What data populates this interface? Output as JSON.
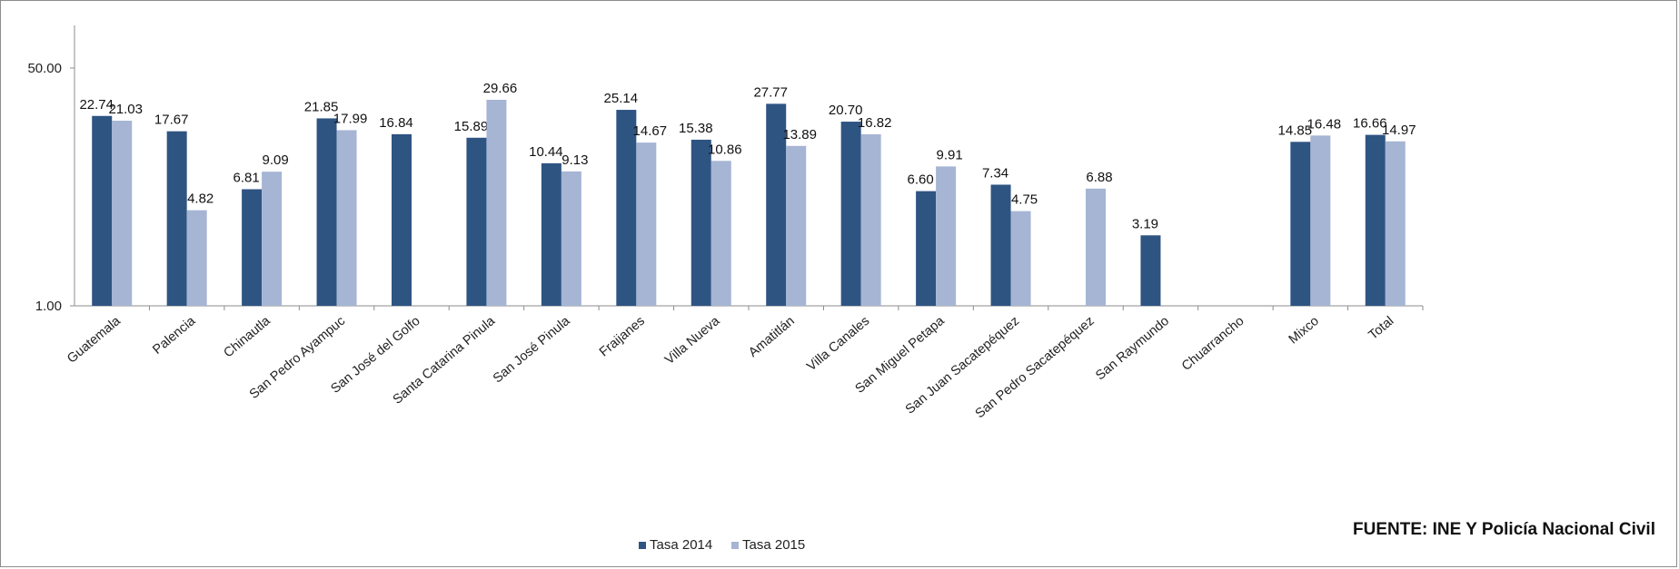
{
  "chart_data": {
    "type": "bar",
    "yscale": "log",
    "ylim": [
      1,
      50
    ],
    "yticks": [
      "50.00",
      "1.00"
    ],
    "grid": false,
    "legend_position": "bottom",
    "categories": [
      "Guatemala",
      "Palencia",
      "Chinautla",
      "San Pedro Ayampuc",
      "San José del Golfo",
      "Santa Catarina Pinula",
      "San José Pinula",
      "Fraijanes",
      "Villa Nueva",
      "Amatitlán",
      "Villa Canales",
      "San Miguel Petapa",
      "San Juan Sacatepéquez",
      "San Pedro Sacatepéquez",
      "San Raymundo",
      "Chuarrancho",
      "Mixco",
      "Total"
    ],
    "series": [
      {
        "name": "Tasa 2014",
        "color": "#2e5482",
        "values": [
          22.74,
          17.67,
          6.81,
          21.85,
          16.84,
          15.89,
          10.44,
          25.14,
          15.38,
          27.77,
          20.7,
          6.6,
          7.34,
          null,
          3.19,
          null,
          14.85,
          16.66
        ],
        "labels": [
          "22.74",
          "17.67",
          "6.81",
          "21.85",
          "16.84",
          "15.89",
          "10.44",
          "25.14",
          "15.38",
          "27.77",
          "20.70",
          "6.60",
          "7.34",
          "",
          "3.19",
          "",
          "14.85",
          "16.66"
        ]
      },
      {
        "name": "Tasa 2015",
        "color": "#a6b5d4",
        "values": [
          21.03,
          4.82,
          9.09,
          17.99,
          null,
          29.66,
          9.13,
          14.67,
          10.86,
          13.89,
          16.82,
          9.91,
          4.75,
          6.88,
          null,
          null,
          16.48,
          14.97
        ],
        "labels": [
          "21.03",
          "4.82",
          "9.09",
          "17.99",
          "",
          "29.66",
          "9.13",
          "14.67",
          "10.86",
          "13.89",
          "16.82",
          "9.91",
          "4.75",
          "6.88",
          "",
          "",
          "16.48",
          "14.97"
        ]
      }
    ]
  },
  "source_note": "FUENTE: INE Y Policía Nacional Civil"
}
